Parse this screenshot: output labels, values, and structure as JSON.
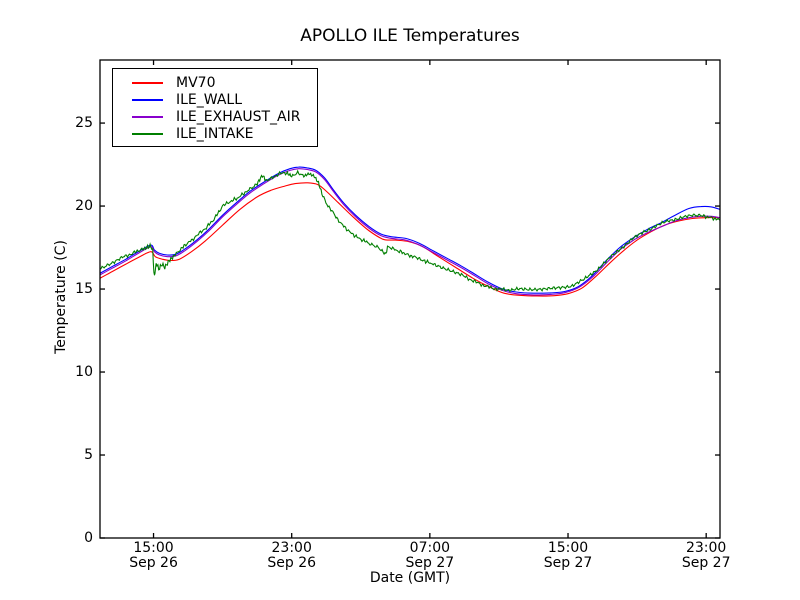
{
  "chart_data": {
    "type": "line",
    "title": "APOLLO ILE Temperatures",
    "xlabel": "Date (GMT)",
    "ylabel": "Temperature (C)",
    "grid": false,
    "legend_position": "upper left",
    "background": "#ffffff",
    "frame_color": "#000000",
    "x_unit": "hours after Sep 26 12:00 GMT",
    "xlim": [
      -0.1,
      35.8
    ],
    "ylim": [
      0,
      28.8
    ],
    "yticks": [
      0,
      5,
      10,
      15,
      20,
      25
    ],
    "xticks": [
      {
        "t": 3,
        "line1": "15:00",
        "line2": "Sep 26"
      },
      {
        "t": 11,
        "line1": "23:00",
        "line2": "Sep 26"
      },
      {
        "t": 19,
        "line1": "07:00",
        "line2": "Sep 27"
      },
      {
        "t": 27,
        "line1": "15:00",
        "line2": "Sep 27"
      },
      {
        "t": 35,
        "line1": "23:00",
        "line2": "Sep 27"
      }
    ],
    "series": [
      {
        "name": "MV70",
        "color": "#ff0000",
        "points": [
          [
            -0.1,
            15.65
          ],
          [
            0.6,
            16.05
          ],
          [
            1.4,
            16.5
          ],
          [
            2.2,
            16.95
          ],
          [
            2.85,
            17.25
          ],
          [
            3.1,
            16.95
          ],
          [
            3.5,
            16.8
          ],
          [
            4.0,
            16.72
          ],
          [
            4.5,
            16.8
          ],
          [
            5.2,
            17.25
          ],
          [
            6,
            17.9
          ],
          [
            7,
            18.85
          ],
          [
            8,
            19.8
          ],
          [
            9,
            20.55
          ],
          [
            9.8,
            20.95
          ],
          [
            10.6,
            21.2
          ],
          [
            11.2,
            21.35
          ],
          [
            11.9,
            21.4
          ],
          [
            12.5,
            21.3
          ],
          [
            13.0,
            20.9
          ],
          [
            13.7,
            20.2
          ],
          [
            14.6,
            19.3
          ],
          [
            15.5,
            18.5
          ],
          [
            16.3,
            18.0
          ],
          [
            17.0,
            17.95
          ],
          [
            17.8,
            17.85
          ],
          [
            18.6,
            17.55
          ],
          [
            19.5,
            16.95
          ],
          [
            20.5,
            16.3
          ],
          [
            21.5,
            15.65
          ],
          [
            22.5,
            15.1
          ],
          [
            23.3,
            14.75
          ],
          [
            24.2,
            14.62
          ],
          [
            25.2,
            14.58
          ],
          [
            26.2,
            14.6
          ],
          [
            27.0,
            14.72
          ],
          [
            27.8,
            15.05
          ],
          [
            28.6,
            15.75
          ],
          [
            29.4,
            16.55
          ],
          [
            30.2,
            17.3
          ],
          [
            31.0,
            17.95
          ],
          [
            31.8,
            18.45
          ],
          [
            32.6,
            18.85
          ],
          [
            33.4,
            19.1
          ],
          [
            34.2,
            19.25
          ],
          [
            35.0,
            19.3
          ],
          [
            35.8,
            19.3
          ]
        ]
      },
      {
        "name": "ILE_WALL",
        "color": "#0000ff",
        "points": [
          [
            -0.1,
            15.95
          ],
          [
            0.6,
            16.35
          ],
          [
            1.4,
            16.8
          ],
          [
            2.2,
            17.3
          ],
          [
            2.85,
            17.65
          ],
          [
            3.05,
            17.35
          ],
          [
            3.35,
            17.15
          ],
          [
            3.8,
            17.05
          ],
          [
            4.3,
            17.1
          ],
          [
            4.8,
            17.4
          ],
          [
            5.5,
            17.95
          ],
          [
            6.2,
            18.6
          ],
          [
            7,
            19.45
          ],
          [
            7.8,
            20.2
          ],
          [
            8.6,
            20.9
          ],
          [
            9.4,
            21.45
          ],
          [
            10.2,
            21.95
          ],
          [
            10.9,
            22.25
          ],
          [
            11.4,
            22.35
          ],
          [
            11.9,
            22.3
          ],
          [
            12.4,
            22.15
          ],
          [
            12.9,
            21.7
          ],
          [
            13.4,
            21.0
          ],
          [
            14.0,
            20.2
          ],
          [
            14.7,
            19.45
          ],
          [
            15.5,
            18.75
          ],
          [
            16.2,
            18.3
          ],
          [
            16.8,
            18.15
          ],
          [
            17.6,
            18.05
          ],
          [
            18.4,
            17.75
          ],
          [
            19.2,
            17.3
          ],
          [
            20.0,
            16.85
          ],
          [
            20.8,
            16.4
          ],
          [
            21.6,
            15.9
          ],
          [
            22.4,
            15.4
          ],
          [
            23.2,
            15.0
          ],
          [
            24.0,
            14.82
          ],
          [
            25.0,
            14.75
          ],
          [
            26.0,
            14.77
          ],
          [
            26.8,
            14.85
          ],
          [
            27.6,
            15.15
          ],
          [
            28.4,
            15.8
          ],
          [
            29.2,
            16.7
          ],
          [
            30.0,
            17.5
          ],
          [
            30.8,
            18.1
          ],
          [
            31.6,
            18.6
          ],
          [
            32.4,
            19.0
          ],
          [
            33.2,
            19.45
          ],
          [
            34.0,
            19.85
          ],
          [
            34.7,
            19.97
          ],
          [
            35.3,
            19.95
          ],
          [
            35.8,
            19.8
          ]
        ]
      },
      {
        "name": "ILE_EXHAUST_AIR",
        "color": "#8800cc",
        "points": [
          [
            -0.1,
            15.85
          ],
          [
            0.6,
            16.25
          ],
          [
            1.4,
            16.7
          ],
          [
            2.2,
            17.2
          ],
          [
            2.85,
            17.55
          ],
          [
            3.05,
            17.25
          ],
          [
            3.35,
            17.05
          ],
          [
            3.8,
            16.95
          ],
          [
            4.3,
            17.0
          ],
          [
            4.8,
            17.3
          ],
          [
            5.5,
            17.85
          ],
          [
            6.2,
            18.5
          ],
          [
            7,
            19.35
          ],
          [
            7.8,
            20.1
          ],
          [
            8.6,
            20.8
          ],
          [
            9.4,
            21.35
          ],
          [
            10.2,
            21.85
          ],
          [
            10.9,
            22.15
          ],
          [
            11.4,
            22.25
          ],
          [
            11.9,
            22.2
          ],
          [
            12.4,
            22.05
          ],
          [
            12.9,
            21.6
          ],
          [
            13.4,
            20.9
          ],
          [
            14.0,
            20.1
          ],
          [
            14.7,
            19.35
          ],
          [
            15.5,
            18.65
          ],
          [
            16.2,
            18.2
          ],
          [
            16.8,
            18.05
          ],
          [
            17.6,
            17.95
          ],
          [
            18.4,
            17.65
          ],
          [
            19.2,
            17.2
          ],
          [
            20.0,
            16.75
          ],
          [
            20.8,
            16.3
          ],
          [
            21.6,
            15.8
          ],
          [
            22.4,
            15.3
          ],
          [
            23.2,
            14.92
          ],
          [
            24.0,
            14.72
          ],
          [
            25.0,
            14.65
          ],
          [
            26.0,
            14.68
          ],
          [
            26.8,
            14.78
          ],
          [
            27.6,
            15.08
          ],
          [
            28.4,
            15.7
          ],
          [
            29.2,
            16.55
          ],
          [
            30.0,
            17.35
          ],
          [
            30.8,
            17.95
          ],
          [
            31.6,
            18.4
          ],
          [
            32.4,
            18.75
          ],
          [
            33.2,
            19.1
          ],
          [
            34.0,
            19.3
          ],
          [
            34.7,
            19.38
          ],
          [
            35.3,
            19.38
          ],
          [
            35.8,
            19.3
          ]
        ]
      },
      {
        "name": "ILE_INTAKE",
        "color": "#007f00",
        "noise_amplitude": 0.11,
        "points": [
          [
            -0.1,
            16.25
          ],
          [
            0.5,
            16.55
          ],
          [
            1.2,
            16.9
          ],
          [
            2.0,
            17.25
          ],
          [
            2.6,
            17.5
          ],
          [
            2.85,
            17.6
          ],
          [
            2.95,
            17.3
          ],
          [
            3.02,
            16.0
          ],
          [
            3.08,
            15.88
          ],
          [
            3.15,
            16.6
          ],
          [
            3.3,
            16.2
          ],
          [
            3.5,
            16.5
          ],
          [
            3.65,
            16.3
          ],
          [
            3.9,
            16.7
          ],
          [
            4.2,
            17.0
          ],
          [
            4.6,
            17.45
          ],
          [
            5.2,
            17.95
          ],
          [
            6.0,
            18.65
          ],
          [
            6.5,
            19.2
          ],
          [
            7.0,
            20.0
          ],
          [
            7.4,
            20.25
          ],
          [
            7.9,
            20.5
          ],
          [
            8.4,
            20.9
          ],
          [
            9.0,
            21.35
          ],
          [
            9.3,
            21.85
          ],
          [
            9.55,
            21.5
          ],
          [
            9.9,
            21.75
          ],
          [
            10.3,
            21.95
          ],
          [
            10.7,
            22.0
          ],
          [
            11.0,
            21.8
          ],
          [
            11.35,
            22.05
          ],
          [
            11.7,
            21.8
          ],
          [
            12.0,
            21.95
          ],
          [
            12.3,
            21.8
          ],
          [
            12.55,
            21.4
          ],
          [
            12.8,
            20.6
          ],
          [
            13.1,
            20.0
          ],
          [
            13.5,
            19.45
          ],
          [
            13.9,
            18.9
          ],
          [
            14.4,
            18.4
          ],
          [
            14.9,
            18.05
          ],
          [
            15.4,
            17.8
          ],
          [
            16.0,
            17.5
          ],
          [
            16.35,
            17.2
          ],
          [
            16.45,
            17.1
          ],
          [
            16.55,
            17.55
          ],
          [
            16.9,
            17.4
          ],
          [
            17.4,
            17.2
          ],
          [
            18.0,
            16.95
          ],
          [
            18.7,
            16.7
          ],
          [
            19.3,
            16.45
          ],
          [
            20.3,
            16.1
          ],
          [
            21.0,
            15.75
          ],
          [
            21.8,
            15.35
          ],
          [
            22.6,
            15.05
          ],
          [
            23.4,
            14.95
          ],
          [
            24.5,
            15.0
          ],
          [
            25.5,
            15.0
          ],
          [
            26.5,
            15.05
          ],
          [
            27.2,
            15.2
          ],
          [
            27.9,
            15.55
          ],
          [
            28.6,
            16.1
          ],
          [
            29.3,
            16.75
          ],
          [
            30.0,
            17.4
          ],
          [
            30.7,
            18.0
          ],
          [
            31.4,
            18.45
          ],
          [
            32.1,
            18.8
          ],
          [
            32.8,
            19.1
          ],
          [
            33.5,
            19.3
          ],
          [
            34.2,
            19.42
          ],
          [
            34.8,
            19.4
          ],
          [
            35.3,
            19.3
          ],
          [
            35.8,
            19.15
          ]
        ]
      }
    ]
  }
}
